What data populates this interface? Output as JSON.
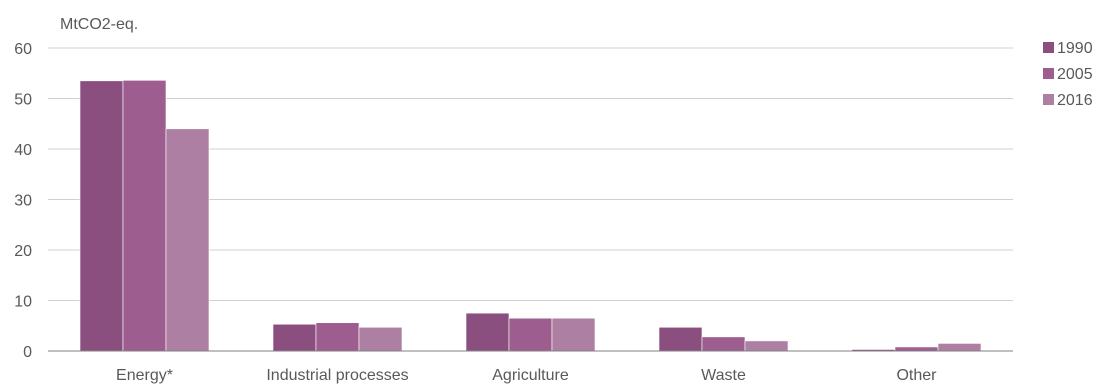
{
  "chart_data": {
    "type": "bar",
    "ylabel": "MtCO2-eq.",
    "ylim": [
      0,
      60
    ],
    "yticks": [
      0,
      10,
      20,
      30,
      40,
      50,
      60
    ],
    "categories": [
      "Energy*",
      "Industrial processes",
      "Agriculture",
      "Waste",
      "Other"
    ],
    "series": [
      {
        "name": "1990",
        "color": "#8b4f7f",
        "values": [
          53.5,
          5.3,
          7.5,
          4.7,
          0.3
        ]
      },
      {
        "name": "2005",
        "color": "#9d5e8f",
        "values": [
          53.6,
          5.6,
          6.5,
          2.8,
          0.8
        ]
      },
      {
        "name": "2016",
        "color": "#ad7fa3",
        "values": [
          44.0,
          4.7,
          6.5,
          2.0,
          1.5
        ]
      }
    ],
    "grid": true,
    "legend_position": "right"
  }
}
